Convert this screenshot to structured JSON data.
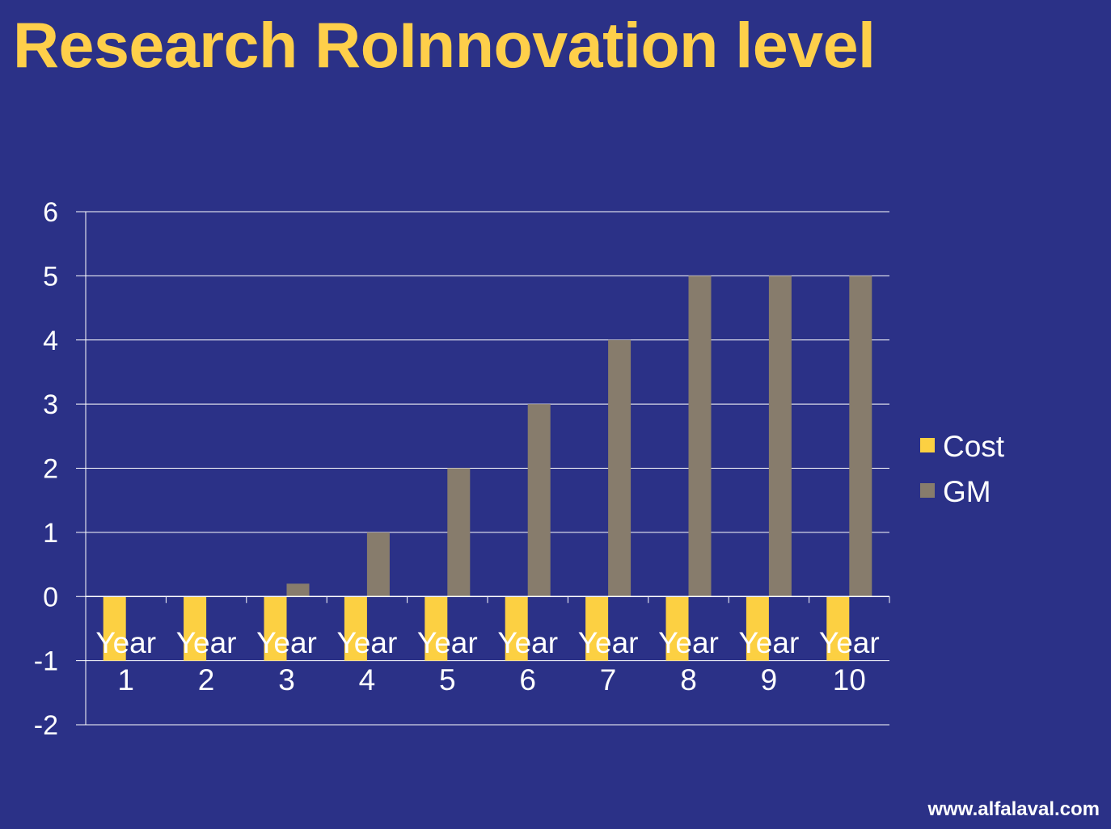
{
  "page": {
    "title": "Research RoInnovation level",
    "footer": "www.alfalaval.com"
  },
  "colors": {
    "background": "#2b3187",
    "title": "#fecf4a",
    "cost": "#fcd042",
    "gm": "#877c6c",
    "text": "#ffffff",
    "grid": "#ffffff"
  },
  "chart_data": {
    "type": "bar",
    "title": "Research RoInnovation level",
    "categories": [
      "Year 1",
      "Year 2",
      "Year 3",
      "Year 4",
      "Year 5",
      "Year 6",
      "Year 7",
      "Year 8",
      "Year 9",
      "Year 10"
    ],
    "category_lines": [
      [
        "Year",
        "1"
      ],
      [
        "Year",
        "2"
      ],
      [
        "Year",
        "3"
      ],
      [
        "Year",
        "4"
      ],
      [
        "Year",
        "5"
      ],
      [
        "Year",
        "6"
      ],
      [
        "Year",
        "7"
      ],
      [
        "Year",
        "8"
      ],
      [
        "Year",
        "9"
      ],
      [
        "Year",
        "10"
      ]
    ],
    "series": [
      {
        "name": "Cost",
        "color": "#fcd042",
        "values": [
          -1,
          -1,
          -1,
          -1,
          -1,
          -1,
          -1,
          -1,
          -1,
          -1
        ]
      },
      {
        "name": "GM",
        "color": "#877c6c",
        "values": [
          0,
          0,
          0.2,
          1,
          2,
          3,
          4,
          5,
          5,
          5
        ]
      }
    ],
    "yticks": [
      6,
      5,
      4,
      3,
      2,
      1,
      0,
      -1,
      -2
    ],
    "ylim": [
      -2,
      6
    ],
    "grid": true,
    "legend": "right",
    "xlabel": "",
    "ylabel": ""
  }
}
